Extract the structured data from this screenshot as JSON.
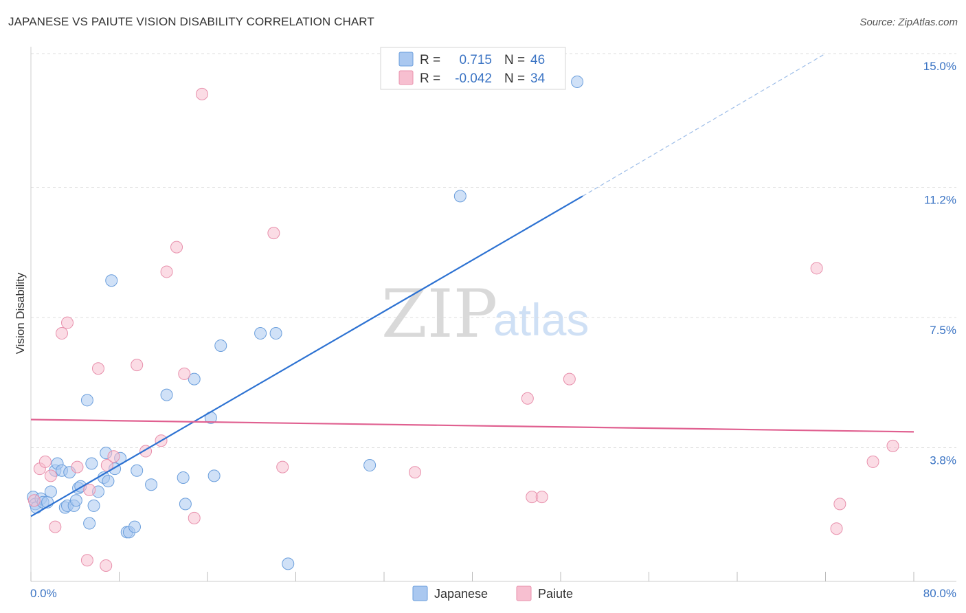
{
  "title": "JAPANESE VS PAIUTE VISION DISABILITY CORRELATION CHART",
  "source": "Source: ZipAtlas.com",
  "watermark": {
    "left": "ZIP",
    "right": "atlas"
  },
  "colors": {
    "japanese_fill": "#aac8f0",
    "japanese_stroke": "#6a9edc",
    "japanese_line": "#2d72d2",
    "paiute_fill": "#f7bfd0",
    "paiute_stroke": "#e890ac",
    "paiute_line": "#e06090",
    "tick_text": "#3b74c4",
    "grid": "#dcdcdc"
  },
  "legend": {
    "japanese": {
      "r_label": "R =",
      "r_value": "0.715",
      "n_label": "N =",
      "n_value": "46"
    },
    "paiute": {
      "r_label": "R =",
      "r_value": "-0.042",
      "n_label": "N =",
      "n_value": "34"
    }
  },
  "bottom_legend": [
    "Japanese",
    "Paiute"
  ],
  "chart_data": {
    "type": "scatter",
    "title": "JAPANESE VS PAIUTE VISION DISABILITY CORRELATION CHART",
    "xlabel": "",
    "ylabel": "Vision Disability",
    "xlim": [
      0,
      80
    ],
    "ylim": [
      0,
      15
    ],
    "x_tick_labels": [
      "0.0%",
      "80.0%"
    ],
    "y_ticks": [
      3.8,
      7.5,
      11.2,
      15.0
    ],
    "y_tick_labels": [
      "3.8%",
      "7.5%",
      "11.2%",
      "15.0%"
    ],
    "series": [
      {
        "name": "Japanese",
        "r": 0.715,
        "n": 46,
        "trend": {
          "x0": 0,
          "y0": 1.85,
          "x1": 50,
          "y1": 10.95,
          "dashed_to": {
            "x": 72,
            "y": 15.0
          }
        },
        "points": [
          [
            0.2,
            2.4
          ],
          [
            0.4,
            2.2
          ],
          [
            0.5,
            2.1
          ],
          [
            0.9,
            2.35
          ],
          [
            1.1,
            2.25
          ],
          [
            1.5,
            2.25
          ],
          [
            1.8,
            2.55
          ],
          [
            2.2,
            3.15
          ],
          [
            2.4,
            3.35
          ],
          [
            2.8,
            3.15
          ],
          [
            3.1,
            2.1
          ],
          [
            3.3,
            2.15
          ],
          [
            3.5,
            3.1
          ],
          [
            3.9,
            2.15
          ],
          [
            4.1,
            2.3
          ],
          [
            4.3,
            2.65
          ],
          [
            4.5,
            2.7
          ],
          [
            5.1,
            5.15
          ],
          [
            5.3,
            1.65
          ],
          [
            5.5,
            3.35
          ],
          [
            5.7,
            2.15
          ],
          [
            6.1,
            2.55
          ],
          [
            6.6,
            2.95
          ],
          [
            6.8,
            3.65
          ],
          [
            7.0,
            2.85
          ],
          [
            7.3,
            8.55
          ],
          [
            7.6,
            3.2
          ],
          [
            8.1,
            3.5
          ],
          [
            8.7,
            1.4
          ],
          [
            8.9,
            1.4
          ],
          [
            9.4,
            1.55
          ],
          [
            9.6,
            3.15
          ],
          [
            10.9,
            2.75
          ],
          [
            12.3,
            5.3
          ],
          [
            13.8,
            2.95
          ],
          [
            14.0,
            2.2
          ],
          [
            14.8,
            5.75
          ],
          [
            16.3,
            4.65
          ],
          [
            16.6,
            3.0
          ],
          [
            17.2,
            6.7
          ],
          [
            20.8,
            7.05
          ],
          [
            22.2,
            7.05
          ],
          [
            23.3,
            0.5
          ],
          [
            30.7,
            3.3
          ],
          [
            38.9,
            10.95
          ],
          [
            49.5,
            14.2
          ]
        ]
      },
      {
        "name": "Paiute",
        "r": -0.042,
        "n": 34,
        "trend": {
          "x0": 0,
          "y0": 4.6,
          "x1": 80,
          "y1": 4.25
        },
        "points": [
          [
            0.3,
            2.3
          ],
          [
            0.8,
            3.2
          ],
          [
            1.3,
            3.4
          ],
          [
            1.8,
            3.0
          ],
          [
            2.2,
            1.55
          ],
          [
            2.8,
            7.05
          ],
          [
            3.3,
            7.35
          ],
          [
            4.2,
            3.25
          ],
          [
            5.1,
            0.6
          ],
          [
            5.3,
            2.6
          ],
          [
            6.1,
            6.05
          ],
          [
            6.8,
            0.45
          ],
          [
            6.9,
            3.3
          ],
          [
            7.5,
            3.55
          ],
          [
            9.6,
            6.15
          ],
          [
            10.4,
            3.7
          ],
          [
            11.8,
            4.0
          ],
          [
            12.3,
            8.8
          ],
          [
            13.2,
            9.5
          ],
          [
            13.9,
            5.9
          ],
          [
            14.8,
            1.8
          ],
          [
            15.5,
            13.85
          ],
          [
            22.0,
            9.9
          ],
          [
            22.8,
            3.25
          ],
          [
            34.8,
            3.1
          ],
          [
            45.0,
            5.2
          ],
          [
            45.4,
            2.4
          ],
          [
            46.3,
            2.4
          ],
          [
            48.8,
            5.75
          ],
          [
            71.2,
            8.9
          ],
          [
            73.0,
            1.5
          ],
          [
            73.3,
            2.2
          ],
          [
            76.3,
            3.4
          ],
          [
            78.1,
            3.85
          ]
        ]
      }
    ]
  }
}
